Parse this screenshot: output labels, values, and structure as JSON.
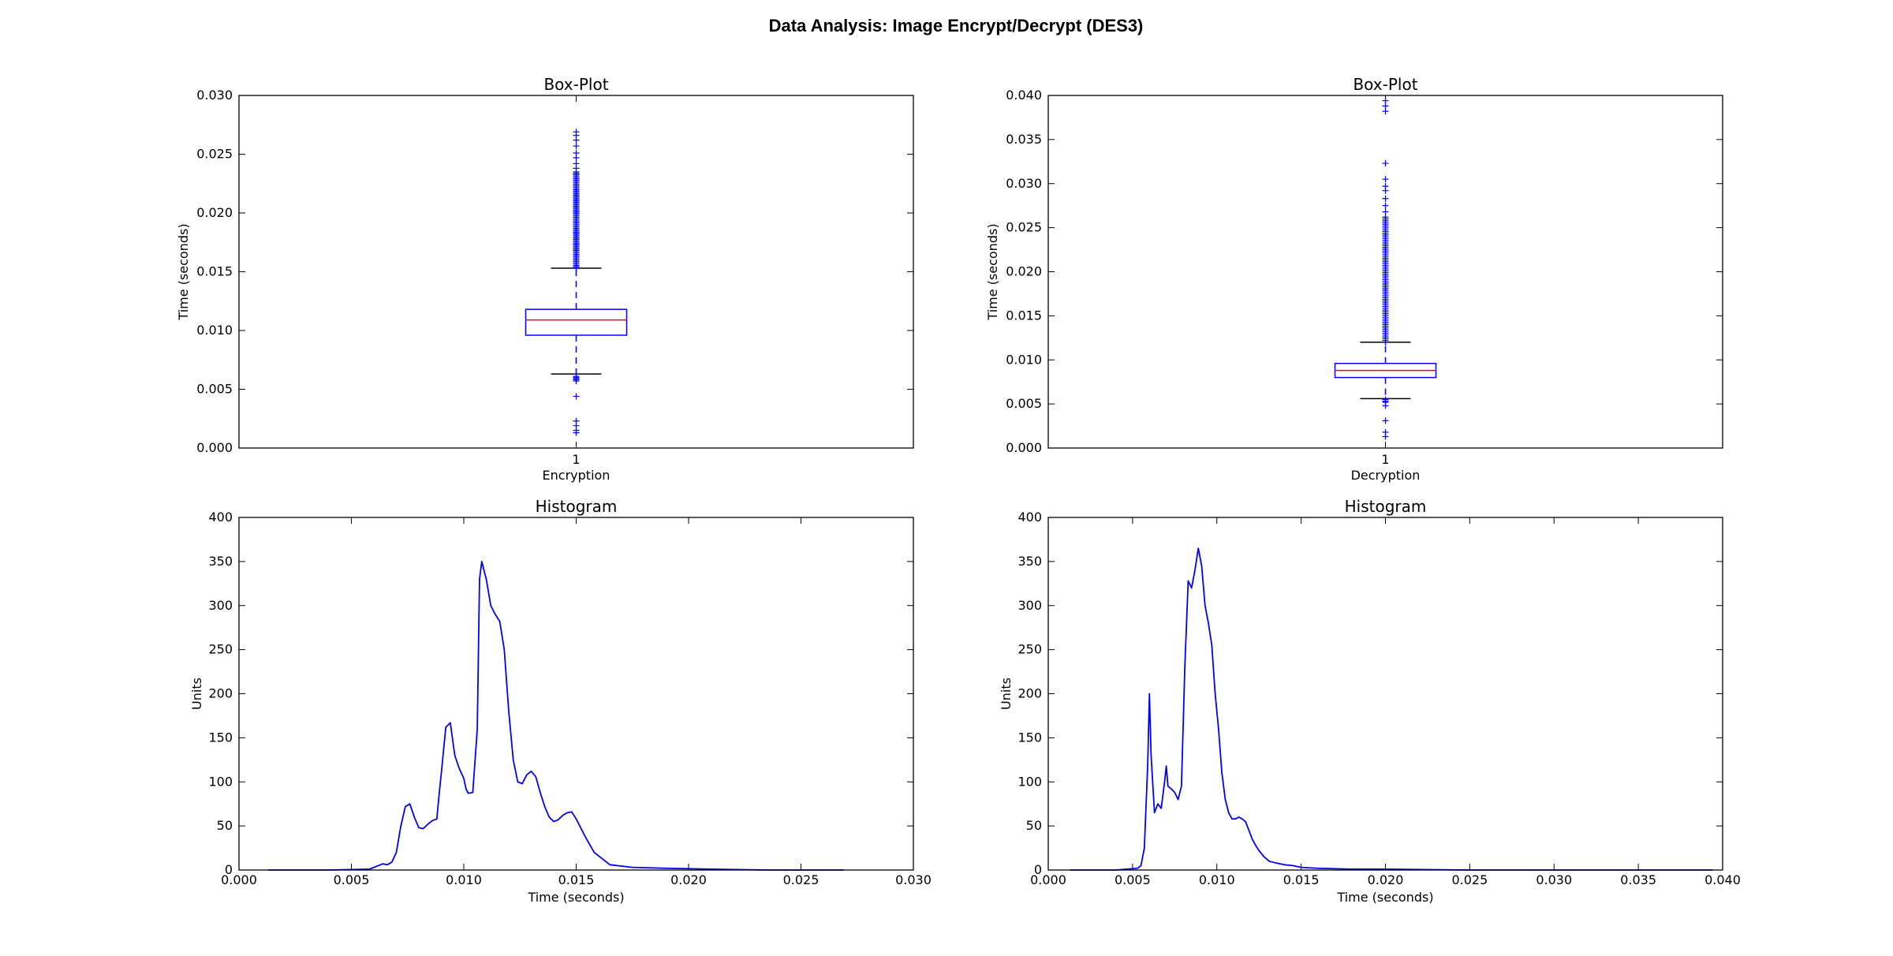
{
  "figure_title": "Data Analysis: Image Encrypt/Decrypt (DES3)",
  "colors": {
    "series": "#0000ff",
    "median": "#ff0000",
    "whisker_cap": "#000000",
    "frame": "#000000"
  },
  "chart_data": [
    {
      "type": "box",
      "title": "Box-Plot",
      "xlabel": "Encryption",
      "ylabel": "Time (seconds)",
      "xticks": [
        "1"
      ],
      "ylim": [
        0.0,
        0.03
      ],
      "yticks": [
        "0.000",
        "0.005",
        "0.010",
        "0.015",
        "0.020",
        "0.025",
        "0.030"
      ],
      "grid": false,
      "box": {
        "q1": 0.0096,
        "median": 0.0109,
        "q3": 0.0118,
        "whisker_low": 0.0063,
        "whisker_high": 0.0153
      },
      "outliers_low": [
        0.0061,
        0.006,
        0.0059,
        0.0058,
        0.0057,
        0.0044,
        0.0023,
        0.0019,
        0.0015,
        0.0013
      ],
      "outliers_high_dense_range": [
        0.0153,
        0.0235
      ],
      "outliers_high": [
        0.0238,
        0.0242,
        0.0247,
        0.0251,
        0.0257,
        0.0262,
        0.0266,
        0.0269
      ]
    },
    {
      "type": "box",
      "title": "Box-Plot",
      "xlabel": "Decryption",
      "ylabel": "Time (seconds)",
      "xticks": [
        "1"
      ],
      "ylim": [
        0.0,
        0.04
      ],
      "yticks": [
        "0.000",
        "0.005",
        "0.010",
        "0.015",
        "0.020",
        "0.025",
        "0.030",
        "0.035",
        "0.040"
      ],
      "grid": false,
      "box": {
        "q1": 0.008,
        "median": 0.0088,
        "q3": 0.0096,
        "whisker_low": 0.0056,
        "whisker_high": 0.012
      },
      "outliers_low": [
        0.0055,
        0.0053,
        0.0052,
        0.0048,
        0.0031,
        0.0018,
        0.0013
      ],
      "outliers_high_dense_range": [
        0.012,
        0.0262
      ],
      "outliers_high": [
        0.0268,
        0.0275,
        0.0283,
        0.0292,
        0.0297,
        0.0305,
        0.0323,
        0.0382,
        0.0388,
        0.0394
      ]
    },
    {
      "type": "line",
      "title": "Histogram",
      "xlabel": "Time (seconds)",
      "ylabel": "Units",
      "xlim": [
        0.0,
        0.03
      ],
      "ylim": [
        0,
        400
      ],
      "xticks": [
        "0.000",
        "0.005",
        "0.010",
        "0.015",
        "0.020",
        "0.025",
        "0.030"
      ],
      "yticks": [
        "0",
        "50",
        "100",
        "150",
        "200",
        "250",
        "300",
        "350",
        "400"
      ],
      "grid": false,
      "x": [
        0.0013,
        0.004,
        0.0058,
        0.006,
        0.0062,
        0.0064,
        0.0066,
        0.0068,
        0.007,
        0.0072,
        0.0074,
        0.0076,
        0.0078,
        0.008,
        0.0082,
        0.0084,
        0.0086,
        0.0088,
        0.0089,
        0.009,
        0.0092,
        0.0094,
        0.0096,
        0.0098,
        0.01,
        0.0101,
        0.0102,
        0.0104,
        0.0106,
        0.0107,
        0.0108,
        0.011,
        0.0112,
        0.0114,
        0.0116,
        0.0118,
        0.012,
        0.0122,
        0.0124,
        0.0126,
        0.0128,
        0.013,
        0.0132,
        0.0134,
        0.0136,
        0.0138,
        0.014,
        0.0142,
        0.0144,
        0.0146,
        0.0148,
        0.015,
        0.0152,
        0.0154,
        0.0158,
        0.0165,
        0.0175,
        0.019,
        0.021,
        0.0235,
        0.0269
      ],
      "y": [
        0,
        0,
        1,
        3,
        5,
        7,
        6,
        9,
        20,
        50,
        72,
        75,
        60,
        48,
        47,
        52,
        56,
        58,
        85,
        110,
        162,
        167,
        130,
        115,
        104,
        92,
        87,
        88,
        160,
        330,
        350,
        330,
        300,
        290,
        282,
        250,
        180,
        125,
        100,
        98,
        108,
        112,
        106,
        88,
        72,
        60,
        55,
        57,
        62,
        65,
        66,
        58,
        48,
        38,
        20,
        6,
        3,
        2,
        1,
        0,
        0
      ]
    },
    {
      "type": "line",
      "title": "Histogram",
      "xlabel": "Time (seconds)",
      "ylabel": "Units",
      "xlim": [
        0.0,
        0.04
      ],
      "ylim": [
        0,
        400
      ],
      "xticks": [
        "0.000",
        "0.005",
        "0.010",
        "0.015",
        "0.020",
        "0.025",
        "0.030",
        "0.035",
        "0.040"
      ],
      "yticks": [
        "0",
        "50",
        "100",
        "150",
        "200",
        "250",
        "300",
        "350",
        "400"
      ],
      "grid": false,
      "x": [
        0.0013,
        0.004,
        0.0053,
        0.0055,
        0.0057,
        0.0059,
        0.006,
        0.0061,
        0.0063,
        0.0065,
        0.0067,
        0.0069,
        0.007,
        0.0071,
        0.0073,
        0.0075,
        0.0077,
        0.0079,
        0.0081,
        0.0083,
        0.0085,
        0.0087,
        0.0089,
        0.0091,
        0.0093,
        0.0095,
        0.0097,
        0.0099,
        0.0101,
        0.0103,
        0.0105,
        0.0107,
        0.0109,
        0.0111,
        0.0113,
        0.0115,
        0.0117,
        0.0119,
        0.0121,
        0.0123,
        0.0125,
        0.0128,
        0.0131,
        0.0135,
        0.014,
        0.0145,
        0.015,
        0.016,
        0.018,
        0.02,
        0.025,
        0.03,
        0.035,
        0.0394
      ],
      "y": [
        0,
        0,
        2,
        5,
        25,
        120,
        200,
        130,
        65,
        75,
        70,
        100,
        118,
        95,
        92,
        88,
        80,
        95,
        230,
        328,
        320,
        340,
        365,
        345,
        300,
        280,
        255,
        200,
        160,
        110,
        80,
        65,
        58,
        58,
        60,
        58,
        55,
        45,
        35,
        28,
        22,
        15,
        10,
        8,
        6,
        5,
        3,
        2,
        1,
        1,
        0,
        0,
        0,
        0
      ]
    }
  ]
}
